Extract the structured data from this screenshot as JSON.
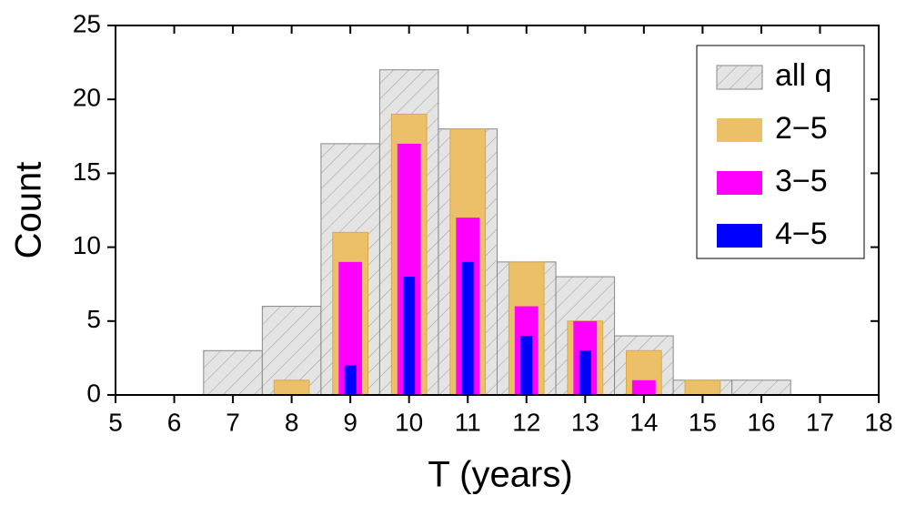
{
  "chart_data": {
    "type": "bar",
    "xlabel": "T (years)",
    "ylabel": "Count",
    "xlim": [
      5,
      18
    ],
    "xticks": [
      5,
      6,
      7,
      8,
      9,
      10,
      11,
      12,
      13,
      14,
      15,
      16,
      17,
      18
    ],
    "ylim": [
      0,
      25
    ],
    "yticks": [
      0,
      5,
      10,
      15,
      20,
      25
    ],
    "legend": "upper right",
    "series": [
      {
        "name": "all q",
        "color": "#e4e4e4",
        "hatch": true,
        "x": [
          7,
          8,
          9,
          10,
          11,
          12,
          13,
          14,
          15,
          16
        ],
        "values": [
          3,
          6,
          17,
          22,
          18,
          9,
          8,
          4,
          1,
          1
        ]
      },
      {
        "name": "2−5",
        "color": "#ecc068",
        "x": [
          8,
          9,
          10,
          11,
          12,
          13,
          14,
          15
        ],
        "values": [
          1,
          11,
          19,
          18,
          9,
          5,
          3,
          1
        ]
      },
      {
        "name": "3−5",
        "color": "#ff00ff",
        "x": [
          9,
          10,
          11,
          12,
          13,
          14
        ],
        "values": [
          9,
          17,
          12,
          6,
          5,
          1
        ]
      },
      {
        "name": "4−5",
        "color": "#0000ff",
        "x": [
          9,
          10,
          11,
          12,
          13
        ],
        "values": [
          2,
          8,
          9,
          4,
          3
        ]
      }
    ]
  }
}
